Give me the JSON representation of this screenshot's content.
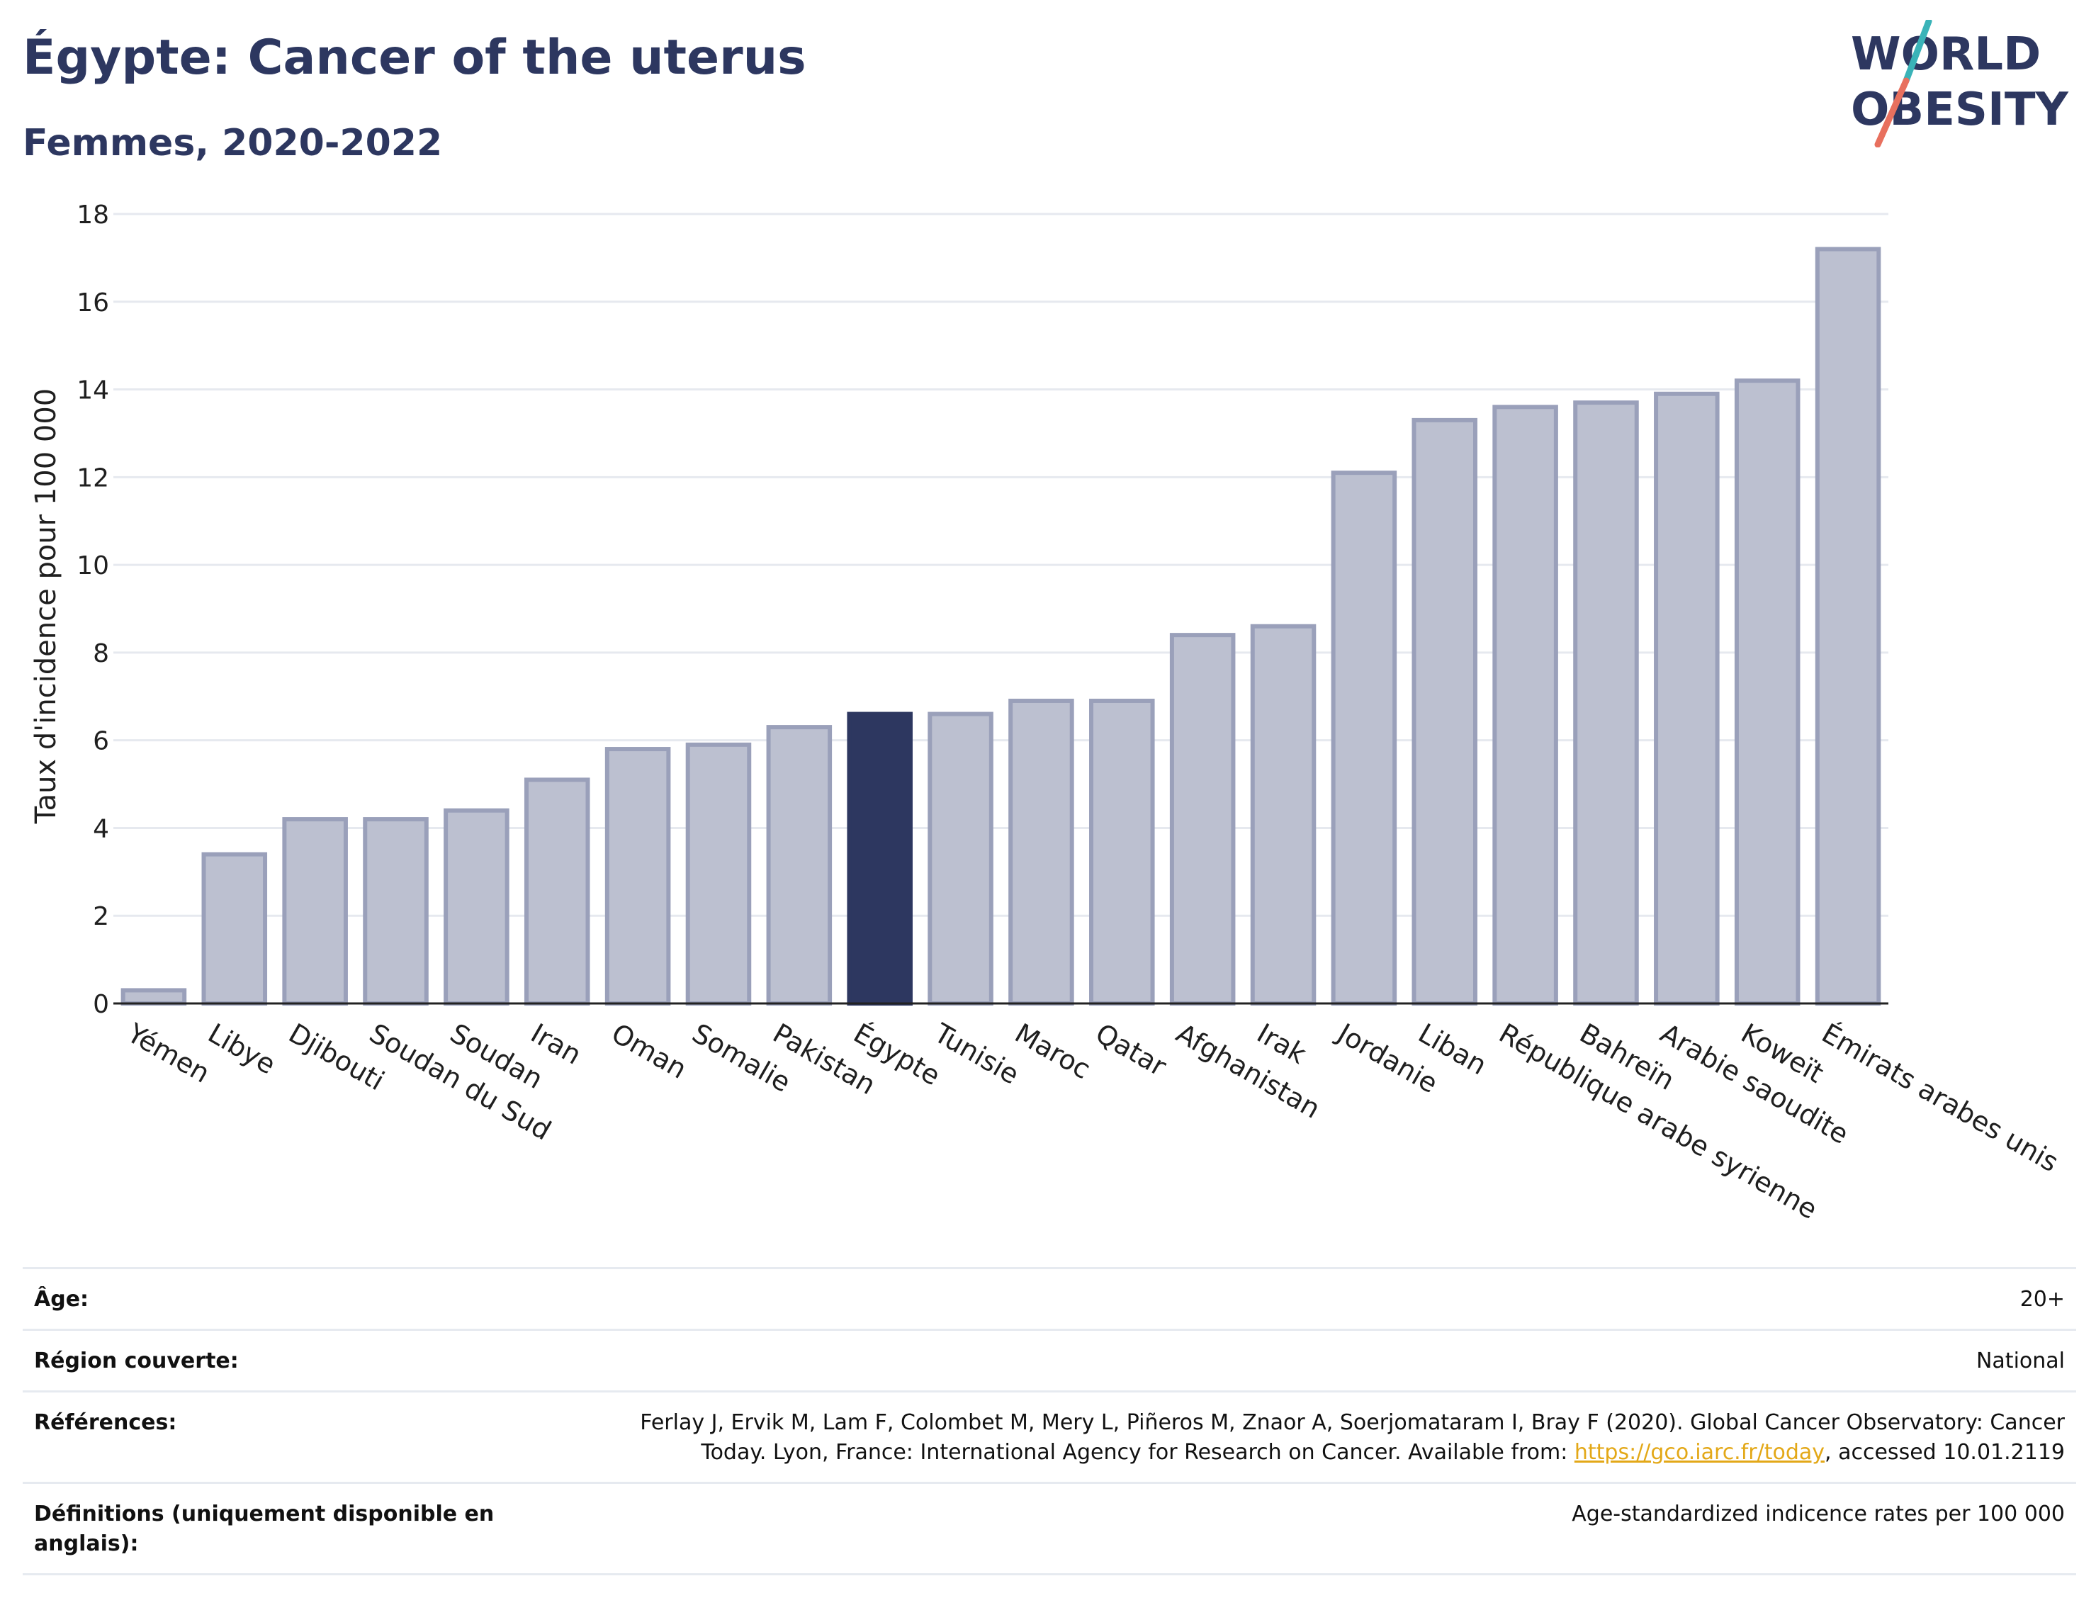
{
  "header": {
    "title": "Égypte: Cancer of the uterus",
    "subtitle": "Femmes, 2020-2022"
  },
  "logo": {
    "line1": "WORLD",
    "line2": "OBESITY",
    "colors": {
      "text": "#2d3760",
      "slash_top": "#3ab3b8",
      "slash_bottom": "#e8705e"
    }
  },
  "colors": {
    "bar": "#bcc0d0",
    "bar_stroke": "#9aa0ba",
    "highlight": "#2d3760",
    "grid": "#e6e9ef",
    "axis": "#222222"
  },
  "chart_data": {
    "type": "bar",
    "title": "Égypte: Cancer of the uterus",
    "subtitle": "Femmes, 2020-2022",
    "xlabel": "",
    "ylabel": "Taux d'incidence pour 100 000",
    "ylim": [
      0,
      18
    ],
    "yticks": [
      0,
      2,
      4,
      6,
      8,
      10,
      12,
      14,
      16,
      18
    ],
    "grid": true,
    "highlight": "Égypte",
    "categories": [
      "Yémen",
      "Libye",
      "Djibouti",
      "Soudan du Sud",
      "Soudan",
      "Iran",
      "Oman",
      "Somalie",
      "Pakistan",
      "Égypte",
      "Tunisie",
      "Maroc",
      "Qatar",
      "Afghanistan",
      "Irak",
      "Jordanie",
      "Liban",
      "République arabe syrienne",
      "Bahreïn",
      "Arabie saoudite",
      "Koweït",
      "Émirats arabes unis"
    ],
    "values": [
      0.3,
      3.4,
      4.2,
      4.2,
      4.4,
      5.1,
      5.8,
      5.9,
      6.3,
      6.6,
      6.6,
      6.9,
      6.9,
      8.4,
      8.6,
      12.1,
      13.3,
      13.6,
      13.7,
      13.9,
      14.2,
      17.2
    ]
  },
  "info": [
    {
      "label": "Âge:",
      "value": "20+"
    },
    {
      "label": "Région couverte:",
      "value": "National"
    },
    {
      "label": "Références:",
      "value_before": "Ferlay J, Ervik M, Lam F, Colombet M, Mery L, Piñeros M, Znaor A, Soerjomataram I, Bray F (2020). Global Cancer Observatory: Cancer Today. Lyon, France: International Agency for Research on Cancer. Available from: ",
      "link": "https://gco.iarc.fr/today",
      "value_after": ", accessed 10.01.2119"
    },
    {
      "label": "Définitions (uniquement disponible en anglais):",
      "value": "Age-standardized indicence rates per 100 000"
    }
  ]
}
